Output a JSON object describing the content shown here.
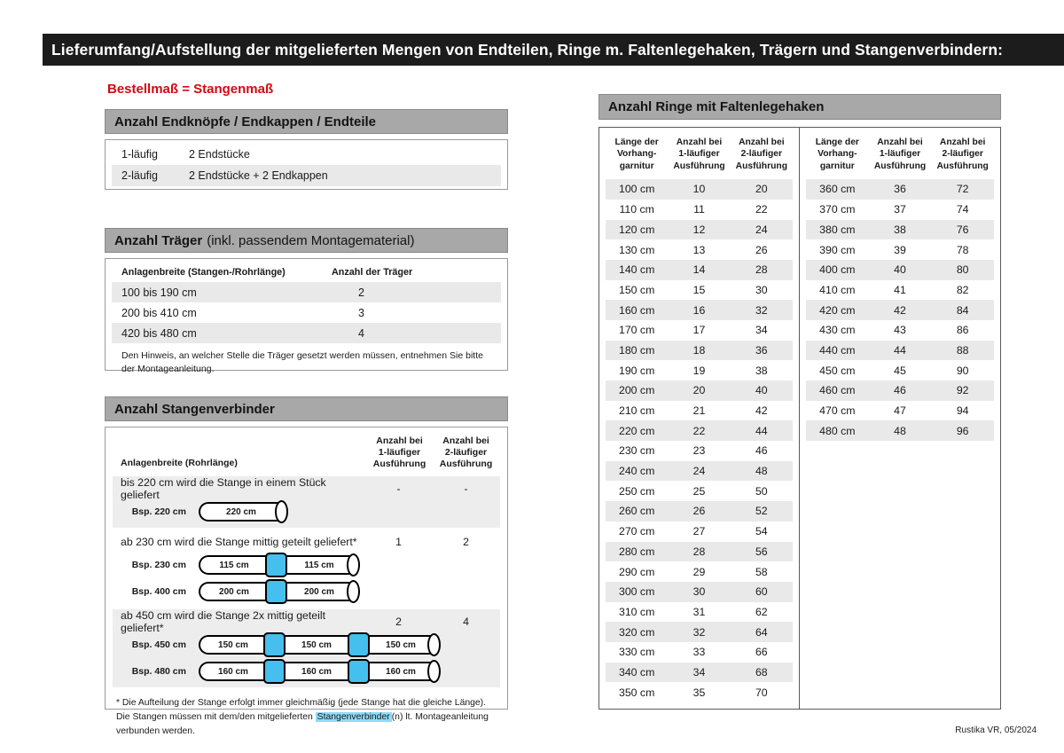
{
  "page": {
    "title": "Lieferumfang/Aufstellung der mitgelieferten Mengen von Endteilen, Ringe m. Faltenlegehaken, Trägern und Stangenverbindern:",
    "red_note": "Bestellmaß = Stangenmaß",
    "footer": "Rustika VR, 05/2024"
  },
  "colors": {
    "accent_red": "#d20a11",
    "bar_gray": "#a8a8a8",
    "stripe_gray": "#e9e9e9",
    "connector_blue": "#45bfee",
    "highlight_blue": "#8edbf8"
  },
  "endteile": {
    "title": "Anzahl Endknöpfe / Endkappen / Endteile",
    "rows": [
      [
        "1-läufig",
        "2 Endstücke"
      ],
      [
        "2-läufig",
        "2 Endstücke + 2 Endkappen"
      ]
    ]
  },
  "traeger": {
    "title": "Anzahl Träger",
    "title_suffix": "(inkl. passendem Montagematerial)",
    "col1": "Anlagenbreite (Stangen-/Rohrlänge)",
    "col2": "Anzahl der Träger",
    "rows": [
      [
        "100 bis 190 cm",
        "2"
      ],
      [
        "200 bis 410 cm",
        "3"
      ],
      [
        "420 bis 480 cm",
        "4"
      ]
    ],
    "note": "Den Hinweis, an welcher Stelle die Träger gesetzt werden müssen, entnehmen Sie bitte der Montageanleitung."
  },
  "verbinder": {
    "title": "Anzahl Stangenverbinder",
    "col1": "Anlagenbreite (Rohrlänge)",
    "col2": "Anzahl bei\n1-läufiger\nAusführung",
    "col3": "Anzahl bei\n2-läufiger\nAusführung",
    "groups": [
      {
        "text": "bis 220 cm wird die Stange in einem Stück geliefert",
        "one": "-",
        "two": "-",
        "examples": [
          {
            "label": "Bsp. 220 cm",
            "segments": [
              "220 cm"
            ]
          }
        ]
      },
      {
        "text": "ab 230 cm wird die Stange mittig geteilt geliefert*",
        "one": "1",
        "two": "2",
        "examples": [
          {
            "label": "Bsp. 230 cm",
            "segments": [
              "115 cm",
              "115 cm"
            ]
          },
          {
            "label": "Bsp. 400 cm",
            "segments": [
              "200 cm",
              "200 cm"
            ]
          }
        ]
      },
      {
        "text": "ab 450 cm wird die Stange 2x mittig geteilt geliefert*",
        "one": "2",
        "two": "4",
        "examples": [
          {
            "label": "Bsp. 450 cm",
            "segments": [
              "150 cm",
              "150 cm",
              "150 cm"
            ]
          },
          {
            "label": "Bsp. 480 cm",
            "segments": [
              "160 cm",
              "160 cm",
              "160 cm"
            ]
          }
        ]
      }
    ],
    "footnote_pre": "* Die Aufteilung der Stange erfolgt immer gleichmäßig (jede Stange hat die gleiche Länge). Die Stangen müssen mit dem/den mitgelieferten ",
    "footnote_highlight": "Stangenverbinder",
    "footnote_post": "(n) lt. Montageanleitung verbunden werden."
  },
  "ringe": {
    "title": "Anzahl Ringe mit Faltenlegehaken",
    "col_headers": [
      "Länge der\nVorhang-\ngarnitur",
      "Anzahl bei\n1-läufiger\nAusführung",
      "Anzahl bei\n2-läufiger\nAusführung"
    ],
    "table1": [
      [
        "100 cm",
        "10",
        "20"
      ],
      [
        "110 cm",
        "11",
        "22"
      ],
      [
        "120 cm",
        "12",
        "24"
      ],
      [
        "130 cm",
        "13",
        "26"
      ],
      [
        "140 cm",
        "14",
        "28"
      ],
      [
        "150 cm",
        "15",
        "30"
      ],
      [
        "160 cm",
        "16",
        "32"
      ],
      [
        "170 cm",
        "17",
        "34"
      ],
      [
        "180 cm",
        "18",
        "36"
      ],
      [
        "190 cm",
        "19",
        "38"
      ],
      [
        "200 cm",
        "20",
        "40"
      ],
      [
        "210 cm",
        "21",
        "42"
      ],
      [
        "220 cm",
        "22",
        "44"
      ],
      [
        "230 cm",
        "23",
        "46"
      ],
      [
        "240 cm",
        "24",
        "48"
      ],
      [
        "250 cm",
        "25",
        "50"
      ],
      [
        "260 cm",
        "26",
        "52"
      ],
      [
        "270 cm",
        "27",
        "54"
      ],
      [
        "280 cm",
        "28",
        "56"
      ],
      [
        "290 cm",
        "29",
        "58"
      ],
      [
        "300 cm",
        "30",
        "60"
      ],
      [
        "310 cm",
        "31",
        "62"
      ],
      [
        "320 cm",
        "32",
        "64"
      ],
      [
        "330 cm",
        "33",
        "66"
      ],
      [
        "340 cm",
        "34",
        "68"
      ],
      [
        "350 cm",
        "35",
        "70"
      ]
    ],
    "table2": [
      [
        "360 cm",
        "36",
        "72"
      ],
      [
        "370 cm",
        "37",
        "74"
      ],
      [
        "380 cm",
        "38",
        "76"
      ],
      [
        "390 cm",
        "39",
        "78"
      ],
      [
        "400 cm",
        "40",
        "80"
      ],
      [
        "410 cm",
        "41",
        "82"
      ],
      [
        "420 cm",
        "42",
        "84"
      ],
      [
        "430 cm",
        "43",
        "86"
      ],
      [
        "440 cm",
        "44",
        "88"
      ],
      [
        "450 cm",
        "45",
        "90"
      ],
      [
        "460 cm",
        "46",
        "92"
      ],
      [
        "470 cm",
        "47",
        "94"
      ],
      [
        "480 cm",
        "48",
        "96"
      ]
    ]
  }
}
